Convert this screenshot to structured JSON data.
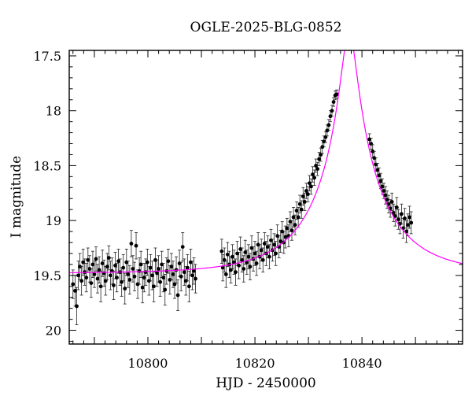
{
  "chart_data": {
    "type": "scatter",
    "title": "OGLE-2025-BLG-0852",
    "xlabel": "HJD - 2450000",
    "ylabel": "I magnitude",
    "xlim": [
      10785.3,
      10858.8
    ],
    "ylim": [
      20.125,
      17.45
    ],
    "y_inverted": true,
    "grid": false,
    "x_ticks": [
      10800,
      10820,
      10840
    ],
    "x_tick_labels": [
      "10800",
      "10820",
      "10840"
    ],
    "y_ticks": [
      17.5,
      18,
      18.5,
      19,
      19.5,
      20
    ],
    "y_tick_labels": [
      "17.5",
      "18",
      "18.5",
      "19",
      "19.5",
      "20"
    ],
    "model": {
      "color": "#ff00ff",
      "t0": 10837.6,
      "u0": 0.104,
      "tE": 13.2,
      "baseline_mag": 19.48,
      "blending_fs": 0.76
    },
    "points": [
      [
        10786.0,
        19.58,
        0.13
      ],
      [
        10786.4,
        19.64,
        0.14
      ],
      [
        10786.7,
        19.78,
        0.17
      ],
      [
        10787.0,
        19.5,
        0.13
      ],
      [
        10787.3,
        19.42,
        0.12
      ],
      [
        10787.6,
        19.55,
        0.13
      ],
      [
        10787.9,
        19.38,
        0.12
      ],
      [
        10788.2,
        19.47,
        0.12
      ],
      [
        10788.5,
        19.52,
        0.13
      ],
      [
        10788.8,
        19.36,
        0.11
      ],
      [
        10789.1,
        19.44,
        0.12
      ],
      [
        10789.4,
        19.57,
        0.13
      ],
      [
        10789.7,
        19.4,
        0.12
      ],
      [
        10790.0,
        19.49,
        0.12
      ],
      [
        10790.3,
        19.35,
        0.11
      ],
      [
        10790.6,
        19.53,
        0.13
      ],
      [
        10790.9,
        19.45,
        0.12
      ],
      [
        10791.2,
        19.6,
        0.14
      ],
      [
        10791.5,
        19.39,
        0.12
      ],
      [
        10791.8,
        19.48,
        0.12
      ],
      [
        10792.1,
        19.55,
        0.13
      ],
      [
        10792.4,
        19.42,
        0.12
      ],
      [
        10792.7,
        19.34,
        0.11
      ],
      [
        10793.0,
        19.5,
        0.13
      ],
      [
        10793.3,
        19.46,
        0.12
      ],
      [
        10793.6,
        19.59,
        0.13
      ],
      [
        10793.9,
        19.41,
        0.12
      ],
      [
        10794.2,
        19.52,
        0.13
      ],
      [
        10794.5,
        19.37,
        0.11
      ],
      [
        10794.8,
        19.47,
        0.12
      ],
      [
        10795.1,
        19.56,
        0.13
      ],
      [
        10795.4,
        19.43,
        0.12
      ],
      [
        10795.7,
        19.62,
        0.14
      ],
      [
        10796.0,
        19.38,
        0.12
      ],
      [
        10796.3,
        19.49,
        0.12
      ],
      [
        10796.6,
        19.54,
        0.13
      ],
      [
        10796.9,
        19.21,
        0.12
      ],
      [
        10797.2,
        19.44,
        0.12
      ],
      [
        10797.5,
        19.51,
        0.13
      ],
      [
        10797.8,
        19.23,
        0.12
      ],
      [
        10798.1,
        19.58,
        0.13
      ],
      [
        10798.4,
        19.46,
        0.12
      ],
      [
        10798.7,
        19.4,
        0.12
      ],
      [
        10799.0,
        19.61,
        0.14
      ],
      [
        10799.3,
        19.52,
        0.13
      ],
      [
        10799.6,
        19.47,
        0.12
      ],
      [
        10799.9,
        19.38,
        0.12
      ],
      [
        10800.2,
        19.55,
        0.13
      ],
      [
        10800.5,
        19.43,
        0.12
      ],
      [
        10800.8,
        19.5,
        0.13
      ],
      [
        10801.1,
        19.6,
        0.14
      ],
      [
        10801.4,
        19.36,
        0.11
      ],
      [
        10801.7,
        19.48,
        0.12
      ],
      [
        10802.0,
        19.44,
        0.12
      ],
      [
        10802.3,
        19.56,
        0.13
      ],
      [
        10802.6,
        19.4,
        0.12
      ],
      [
        10802.9,
        19.52,
        0.13
      ],
      [
        10803.2,
        19.63,
        0.14
      ],
      [
        10803.5,
        19.46,
        0.12
      ],
      [
        10803.8,
        19.37,
        0.11
      ],
      [
        10804.1,
        19.54,
        0.13
      ],
      [
        10804.4,
        19.42,
        0.12
      ],
      [
        10804.7,
        19.49,
        0.12
      ],
      [
        10805.0,
        19.58,
        0.13
      ],
      [
        10805.3,
        19.45,
        0.12
      ],
      [
        10805.6,
        19.68,
        0.14
      ],
      [
        10805.9,
        19.39,
        0.12
      ],
      [
        10806.2,
        19.51,
        0.13
      ],
      [
        10806.5,
        19.24,
        0.13
      ],
      [
        10806.8,
        19.47,
        0.12
      ],
      [
        10807.1,
        19.55,
        0.13
      ],
      [
        10807.4,
        19.43,
        0.12
      ],
      [
        10807.7,
        19.6,
        0.14
      ],
      [
        10808.0,
        19.38,
        0.12
      ],
      [
        10808.3,
        19.5,
        0.13
      ],
      [
        10808.6,
        19.46,
        0.12
      ],
      [
        10808.9,
        19.53,
        0.13
      ],
      [
        10813.8,
        19.28,
        0.11
      ],
      [
        10814.0,
        19.43,
        0.12
      ],
      [
        10814.3,
        19.36,
        0.11
      ],
      [
        10814.6,
        19.49,
        0.12
      ],
      [
        10814.9,
        19.31,
        0.11
      ],
      [
        10815.2,
        19.4,
        0.12
      ],
      [
        10815.5,
        19.45,
        0.12
      ],
      [
        10815.8,
        19.33,
        0.11
      ],
      [
        10816.1,
        19.38,
        0.11
      ],
      [
        10816.4,
        19.47,
        0.12
      ],
      [
        10816.7,
        19.3,
        0.11
      ],
      [
        10817.0,
        19.41,
        0.12
      ],
      [
        10817.3,
        19.26,
        0.11
      ],
      [
        10817.6,
        19.36,
        0.11
      ],
      [
        10817.9,
        19.44,
        0.12
      ],
      [
        10818.2,
        19.29,
        0.11
      ],
      [
        10818.5,
        19.38,
        0.11
      ],
      [
        10818.8,
        19.33,
        0.11
      ],
      [
        10819.1,
        19.42,
        0.12
      ],
      [
        10819.4,
        19.25,
        0.11
      ],
      [
        10819.7,
        19.35,
        0.11
      ],
      [
        10820.0,
        19.3,
        0.11
      ],
      [
        10820.3,
        19.39,
        0.11
      ],
      [
        10820.6,
        19.22,
        0.11
      ],
      [
        10820.9,
        19.33,
        0.11
      ],
      [
        10821.2,
        19.27,
        0.1
      ],
      [
        10821.5,
        19.36,
        0.11
      ],
      [
        10821.8,
        19.21,
        0.1
      ],
      [
        10822.1,
        19.3,
        0.11
      ],
      [
        10822.4,
        19.24,
        0.1
      ],
      [
        10822.7,
        19.33,
        0.11
      ],
      [
        10823.0,
        19.18,
        0.1
      ],
      [
        10823.3,
        19.27,
        0.1
      ],
      [
        10823.6,
        19.22,
        0.1
      ],
      [
        10823.9,
        19.3,
        0.11
      ],
      [
        10824.2,
        19.14,
        0.1
      ],
      [
        10824.5,
        19.24,
        0.1
      ],
      [
        10824.8,
        19.19,
        0.1
      ],
      [
        10825.1,
        19.1,
        0.09
      ],
      [
        10825.4,
        19.2,
        0.1
      ],
      [
        10825.7,
        19.15,
        0.1
      ],
      [
        10826.0,
        19.07,
        0.09
      ],
      [
        10826.3,
        19.14,
        0.1
      ],
      [
        10826.6,
        19.01,
        0.09
      ],
      [
        10826.9,
        19.09,
        0.09
      ],
      [
        10827.2,
        18.97,
        0.09
      ],
      [
        10827.5,
        19.04,
        0.09
      ],
      [
        10827.8,
        18.91,
        0.08
      ],
      [
        10828.1,
        18.97,
        0.09
      ],
      [
        10828.4,
        18.85,
        0.08
      ],
      [
        10828.7,
        18.9,
        0.08
      ],
      [
        10829.0,
        18.78,
        0.08
      ],
      [
        10829.3,
        18.83,
        0.08
      ],
      [
        10829.6,
        18.73,
        0.07
      ],
      [
        10829.9,
        18.76,
        0.07
      ],
      [
        10830.2,
        18.66,
        0.07
      ],
      [
        10830.5,
        18.69,
        0.07
      ],
      [
        10830.8,
        18.58,
        0.07
      ],
      [
        10831.1,
        18.61,
        0.07
      ],
      [
        10831.4,
        18.5,
        0.06
      ],
      [
        10831.7,
        18.53,
        0.06
      ],
      [
        10832.0,
        18.44,
        0.06
      ],
      [
        10832.3,
        18.4,
        0.06
      ],
      [
        10832.6,
        18.33,
        0.06
      ],
      [
        10832.9,
        18.28,
        0.05
      ],
      [
        10833.2,
        18.24,
        0.05
      ],
      [
        10833.5,
        18.18,
        0.05
      ],
      [
        10833.8,
        18.13,
        0.05
      ],
      [
        10834.1,
        18.05,
        0.05
      ],
      [
        10834.4,
        18.0,
        0.05
      ],
      [
        10834.7,
        17.92,
        0.04
      ],
      [
        10835.0,
        17.86,
        0.04
      ],
      [
        10835.3,
        17.85,
        0.04
      ],
      [
        10841.4,
        18.26,
        0.05
      ],
      [
        10841.7,
        18.3,
        0.05
      ],
      [
        10842.0,
        18.37,
        0.06
      ],
      [
        10842.3,
        18.43,
        0.06
      ],
      [
        10842.6,
        18.49,
        0.06
      ],
      [
        10842.9,
        18.54,
        0.06
      ],
      [
        10843.2,
        18.59,
        0.07
      ],
      [
        10843.5,
        18.64,
        0.07
      ],
      [
        10843.8,
        18.69,
        0.07
      ],
      [
        10844.1,
        18.73,
        0.07
      ],
      [
        10844.4,
        18.77,
        0.08
      ],
      [
        10844.7,
        18.81,
        0.08
      ],
      [
        10845.0,
        18.85,
        0.08
      ],
      [
        10845.3,
        18.89,
        0.08
      ],
      [
        10845.6,
        18.83,
        0.08
      ],
      [
        10845.9,
        18.93,
        0.08
      ],
      [
        10846.2,
        18.96,
        0.09
      ],
      [
        10846.5,
        18.88,
        0.09
      ],
      [
        10846.8,
        18.99,
        0.09
      ],
      [
        10847.1,
        19.03,
        0.09
      ],
      [
        10847.4,
        18.94,
        0.09
      ],
      [
        10847.7,
        19.07,
        0.09
      ],
      [
        10848.0,
        18.98,
        0.09
      ],
      [
        10848.3,
        19.1,
        0.1
      ],
      [
        10848.6,
        19.04,
        0.1
      ],
      [
        10848.9,
        18.97,
        0.1
      ],
      [
        10849.2,
        19.02,
        0.1
      ]
    ]
  }
}
